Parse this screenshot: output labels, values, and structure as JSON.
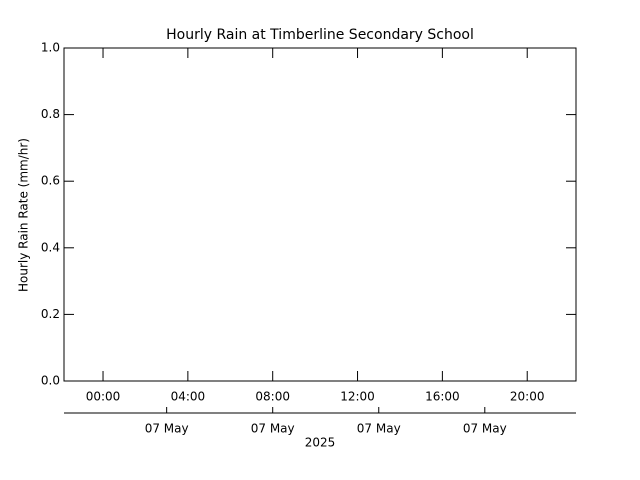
{
  "chart_data": {
    "type": "line",
    "title": "Hourly Rain at Timberline Secondary School",
    "ylabel": "Hourly Rain Rate (mm/hr)",
    "x2label": "2025",
    "series": [],
    "ylim": [
      0,
      1
    ],
    "yticks": [
      {
        "value": 0,
        "label": "0.0"
      },
      0.2,
      0.4,
      0.6,
      0.8,
      {
        "value": 1,
        "label": "1.0"
      }
    ],
    "xlim": [
      -1.84,
      22.3
    ],
    "xticks": [
      {
        "value": 0,
        "label": "00:00"
      },
      {
        "value": 4,
        "label": "04:00"
      },
      {
        "value": 8,
        "label": "08:00"
      },
      {
        "value": 12,
        "label": "12:00"
      },
      {
        "value": 16,
        "label": "16:00"
      },
      {
        "value": 20,
        "label": "20:00"
      }
    ],
    "x2lim": [
      -1.84,
      22.3
    ],
    "x2ticks": [
      {
        "value": 3,
        "label": "07 May"
      },
      {
        "value": 8,
        "label": "07 May"
      },
      {
        "value": 13,
        "label": "07 May"
      },
      {
        "value": 18,
        "label": "07 May"
      }
    ]
  }
}
